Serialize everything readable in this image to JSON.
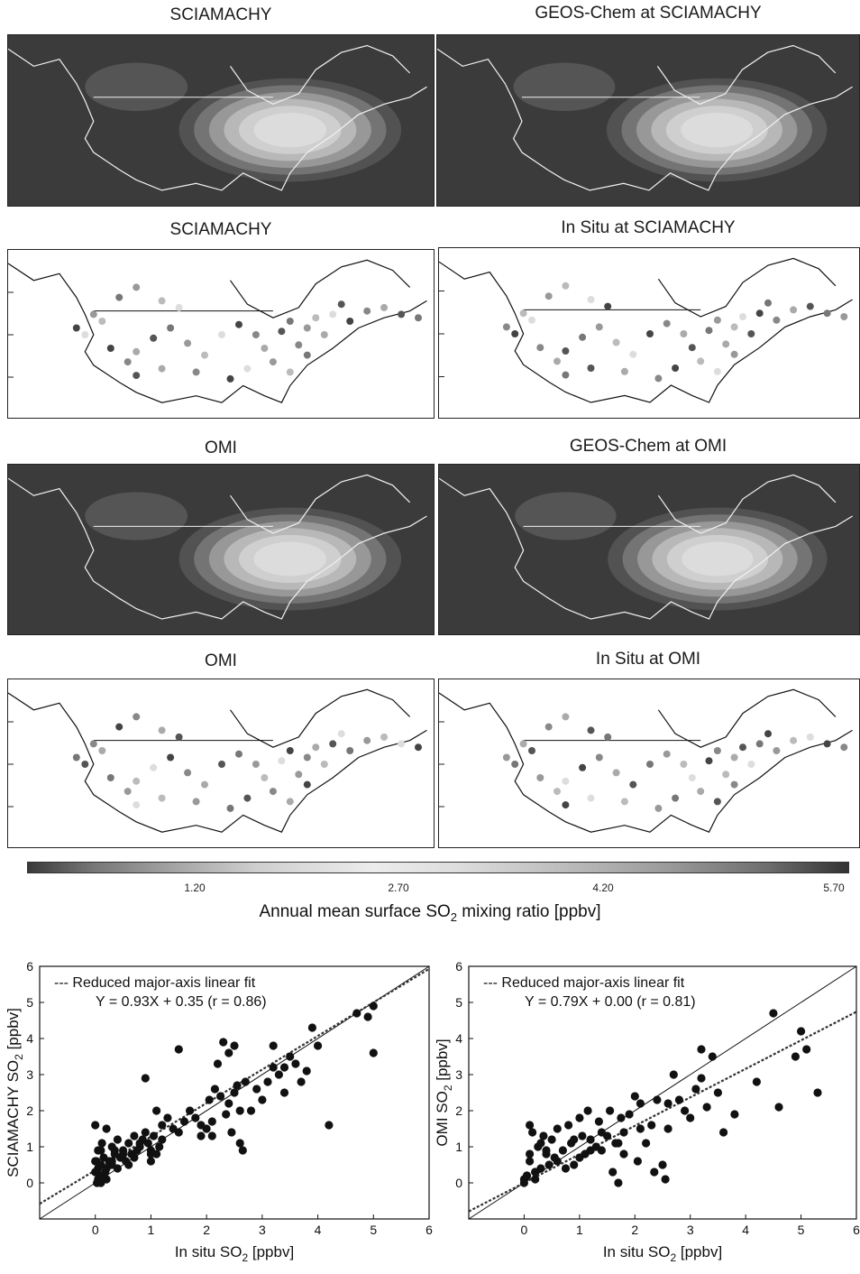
{
  "map_panels": [
    {
      "title": "SCIAMACHY",
      "kind": "field"
    },
    {
      "title": "GEOS-Chem at SCIAMACHY",
      "kind": "field"
    },
    {
      "title": "SCIAMACHY",
      "kind": "points"
    },
    {
      "title": "In Situ at SCIAMACHY",
      "kind": "points"
    },
    {
      "title": "OMI",
      "kind": "field"
    },
    {
      "title": "GEOS-Chem at OMI",
      "kind": "field"
    },
    {
      "title": "OMI",
      "kind": "points"
    },
    {
      "title": "In Situ at OMI",
      "kind": "points"
    }
  ],
  "colorbar": {
    "ticks": [
      "1.20",
      "2.70",
      "4.20",
      "5.70"
    ],
    "label_main": "Annual mean surface SO",
    "label_sub": "2",
    "label_tail": " mixing ratio [ppbv]"
  },
  "colors": {
    "map_dark": "#3b3b3b",
    "map_light": "#e6e6e6",
    "points_bg": "#ffffff",
    "marker": "#111111"
  },
  "chart_data": [
    {
      "type": "scatter",
      "ylabel_main": "SCIAMACHY SO",
      "ylabel_sub": "2",
      "ylabel_tail": " [ppbv]",
      "xlabel_main": "In situ SO",
      "xlabel_sub": "2",
      "xlabel_tail": " [ppbv]",
      "xlim": [
        -1,
        6
      ],
      "ylim": [
        -1,
        6
      ],
      "xticks": [
        0,
        1,
        2,
        3,
        4,
        5,
        6
      ],
      "yticks": [
        0,
        1,
        2,
        3,
        4,
        5,
        6
      ],
      "legend": "--- Reduced major-axis linear fit",
      "fit_text": "Y = 0.93X + 0.35 (r = 0.86)",
      "fit": {
        "slope": 0.93,
        "intercept": 0.35
      },
      "x": [
        0.0,
        0.02,
        0.05,
        0.0,
        0.08,
        0.1,
        0.03,
        0.12,
        0.05,
        0.15,
        0.2,
        0.1,
        0.25,
        0.3,
        0.18,
        0.35,
        0.4,
        0.3,
        0.45,
        0.5,
        0.55,
        0.6,
        0.65,
        0.7,
        0.75,
        0.8,
        0.85,
        0.9,
        0.95,
        1.0,
        1.05,
        1.1,
        1.15,
        1.2,
        1.0,
        0.9,
        1.3,
        1.4,
        1.5,
        1.6,
        1.7,
        1.8,
        1.9,
        2.0,
        2.05,
        2.1,
        2.15,
        2.2,
        2.25,
        2.3,
        2.35,
        2.4,
        2.45,
        2.5,
        2.55,
        2.6,
        2.65,
        2.7,
        2.8,
        2.9,
        3.0,
        3.1,
        3.2,
        3.3,
        3.4,
        3.5,
        3.6,
        3.7,
        3.8,
        3.9,
        4.0,
        4.2,
        4.7,
        4.9,
        5.0,
        5.0,
        0.05,
        0.1,
        0.15,
        0.2,
        0.3,
        0.5,
        0.6,
        0.7,
        0.8,
        1.1,
        1.2,
        1.5,
        1.9,
        2.5,
        2.4,
        2.6,
        2.1,
        3.2,
        3.4,
        1.0,
        0.4,
        0.2,
        0.0,
        0.35
      ],
      "y": [
        0.3,
        0.6,
        0.9,
        1.6,
        0.2,
        0.5,
        0.0,
        1.1,
        0.4,
        0.7,
        1.5,
        0.9,
        0.6,
        1.0,
        0.3,
        0.8,
        1.2,
        0.5,
        0.7,
        0.9,
        0.6,
        1.1,
        0.8,
        1.3,
        0.9,
        1.0,
        1.2,
        1.4,
        1.1,
        0.9,
        1.3,
        2.0,
        1.0,
        1.6,
        0.8,
        2.9,
        1.8,
        1.5,
        3.7,
        1.7,
        2.0,
        1.8,
        1.6,
        1.5,
        2.3,
        1.7,
        2.6,
        3.3,
        2.4,
        3.9,
        1.9,
        3.6,
        1.4,
        3.8,
        2.7,
        1.1,
        0.9,
        2.8,
        2.0,
        2.6,
        2.3,
        2.8,
        3.2,
        3.0,
        2.5,
        3.5,
        3.3,
        2.8,
        3.1,
        4.3,
        3.8,
        1.6,
        4.7,
        4.6,
        4.9,
        3.6,
        0.1,
        0.0,
        0.2,
        0.4,
        0.6,
        0.8,
        0.5,
        0.7,
        1.1,
        0.8,
        1.2,
        1.4,
        1.3,
        2.5,
        2.2,
        2.0,
        1.3,
        3.8,
        3.2,
        0.6,
        0.4,
        0.1,
        0.6,
        0.9
      ]
    },
    {
      "type": "scatter",
      "ylabel_main": "OMI SO",
      "ylabel_sub": "2",
      "ylabel_tail": " [ppbv]",
      "xlabel_main": "In situ SO",
      "xlabel_sub": "2",
      "xlabel_tail": " [ppbv]",
      "xlim": [
        -1,
        6
      ],
      "ylim": [
        -1,
        6
      ],
      "xticks": [
        0,
        1,
        2,
        3,
        4,
        5,
        6
      ],
      "yticks": [
        0,
        1,
        2,
        3,
        4,
        5,
        6
      ],
      "legend": "--- Reduced major-axis linear fit",
      "fit_text": "Y = 0.79X + 0.00 (r = 0.81)",
      "fit": {
        "slope": 0.79,
        "intercept": 0.0
      },
      "x": [
        0.0,
        0.05,
        0.1,
        0.0,
        0.15,
        0.2,
        0.1,
        0.25,
        0.3,
        0.35,
        0.4,
        0.2,
        0.45,
        0.5,
        0.55,
        0.6,
        0.7,
        0.75,
        0.8,
        0.85,
        0.9,
        1.0,
        1.05,
        1.1,
        1.15,
        1.2,
        1.3,
        1.35,
        1.4,
        1.5,
        1.55,
        1.6,
        1.65,
        1.7,
        1.75,
        1.8,
        1.9,
        2.0,
        2.05,
        2.1,
        2.2,
        2.3,
        2.35,
        2.4,
        2.5,
        2.55,
        2.6,
        2.7,
        2.8,
        2.9,
        3.0,
        3.1,
        3.2,
        3.3,
        3.4,
        3.5,
        3.6,
        3.8,
        4.2,
        4.6,
        4.5,
        4.9,
        5.0,
        5.1,
        5.3,
        0.1,
        0.3,
        0.6,
        0.9,
        1.2,
        1.4,
        1.7,
        2.1,
        2.6,
        3.2,
        1.0,
        0.4,
        0.05,
        0.2,
        1.8
      ],
      "y": [
        0.1,
        0.2,
        1.6,
        0.0,
        1.4,
        0.3,
        0.6,
        1.0,
        0.4,
        1.3,
        0.8,
        0.1,
        0.5,
        1.2,
        0.7,
        1.5,
        0.9,
        0.4,
        1.6,
        1.1,
        0.5,
        1.8,
        1.3,
        0.8,
        2.0,
        1.2,
        1.0,
        1.7,
        0.9,
        1.3,
        2.0,
        0.3,
        1.1,
        0.0,
        1.8,
        1.4,
        1.9,
        2.4,
        0.6,
        2.2,
        1.1,
        1.6,
        0.3,
        2.3,
        0.5,
        0.1,
        1.5,
        3.0,
        2.3,
        2.0,
        1.8,
        2.6,
        3.7,
        2.1,
        3.5,
        2.5,
        1.4,
        1.9,
        2.8,
        2.1,
        4.7,
        3.5,
        4.2,
        3.7,
        2.5,
        0.8,
        1.1,
        0.6,
        1.2,
        0.9,
        1.4,
        1.1,
        1.5,
        2.2,
        2.9,
        0.7,
        0.9,
        0.2,
        0.3,
        0.8
      ]
    }
  ]
}
